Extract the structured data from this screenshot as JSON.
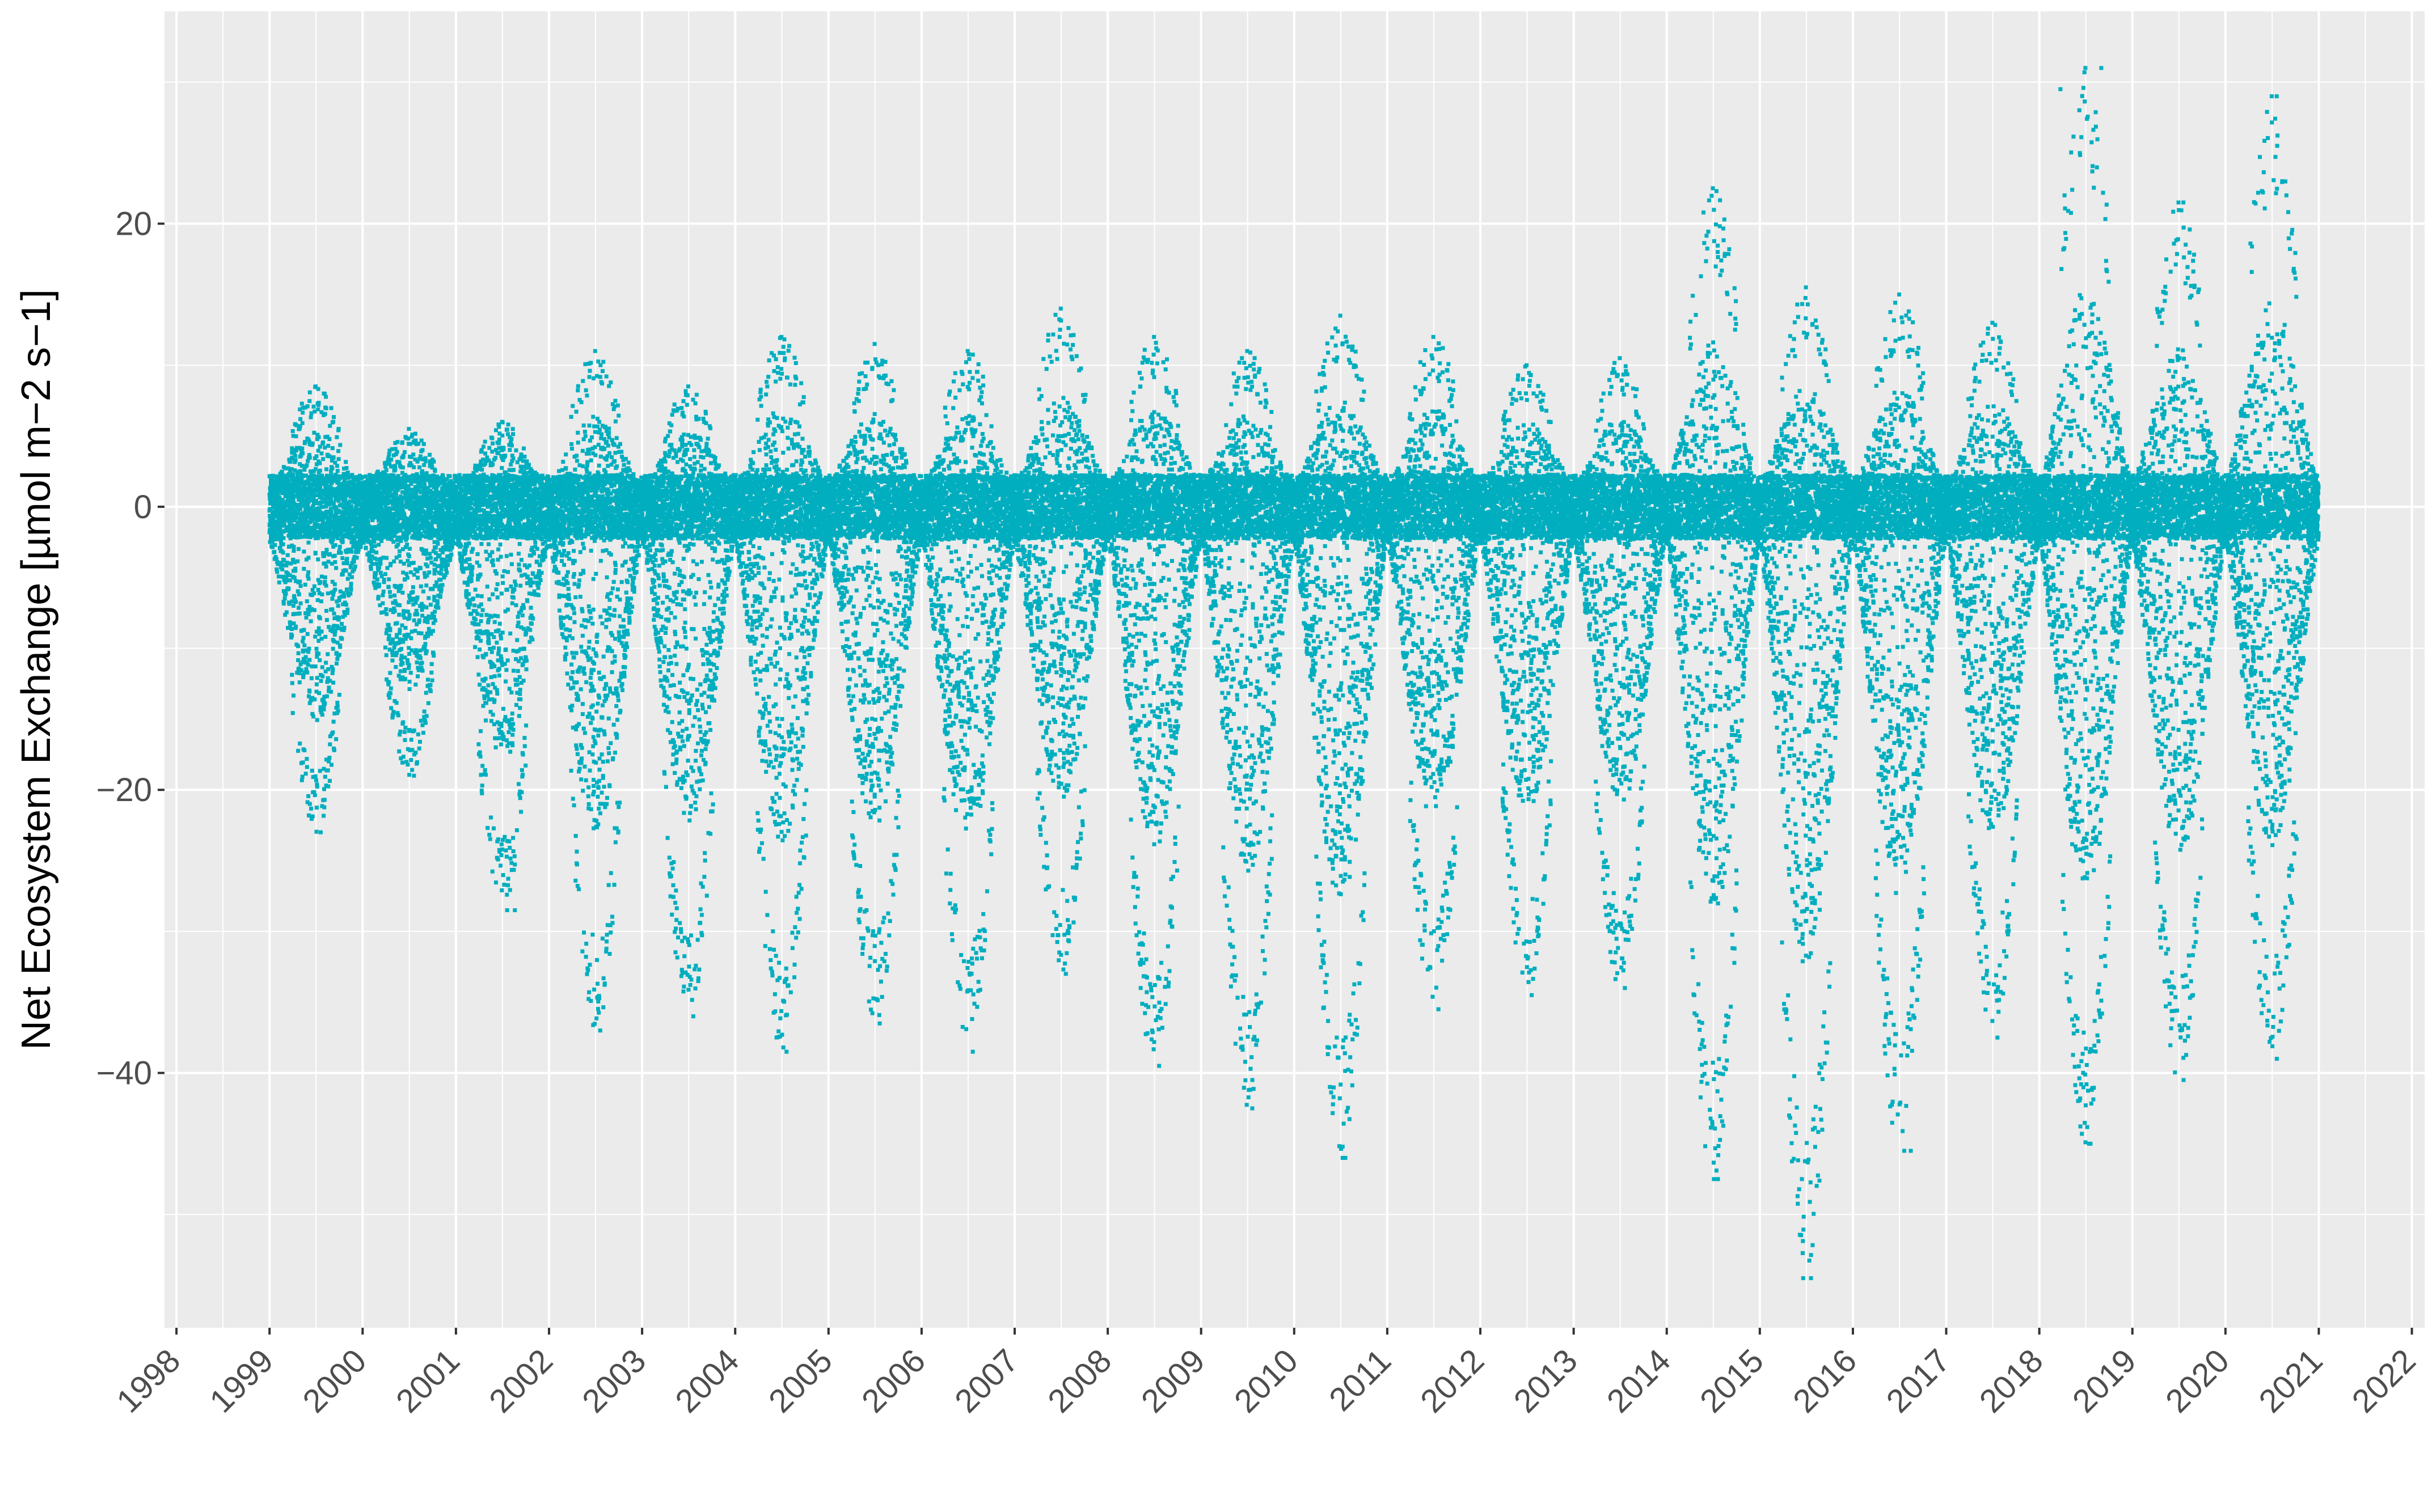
{
  "chart_data": {
    "type": "scatter",
    "title": "",
    "xlabel": "",
    "ylabel": "Net Ecosystem Exchange [µmol m−2 s−1]",
    "xlim": [
      "1997-11-15",
      "2022-02-20"
    ],
    "ylim": [
      -58,
      35
    ],
    "x_ticks": [
      "1998",
      "1999",
      "2000",
      "2001",
      "2002",
      "2003",
      "2004",
      "2005",
      "2006",
      "2007",
      "2008",
      "2009",
      "2010",
      "2011",
      "2012",
      "2013",
      "2014",
      "2015",
      "2016",
      "2017",
      "2018",
      "2019",
      "2020",
      "2021",
      "2022"
    ],
    "y_ticks": [
      -40,
      -20,
      0,
      20
    ],
    "grid": true,
    "legend": "none",
    "point_color": "#00AEBF",
    "panel_color": "#EBEBEB",
    "grid_color": "#FFFFFF",
    "series": [
      {
        "x_range": [
          "1999-01-01",
          "2020-12-31"
        ],
        "seasonal_extremes": [
          {
            "year": "1999",
            "max": 8.5,
            "min": -23
          },
          {
            "year": "2000",
            "max": 5.5,
            "min": -19
          },
          {
            "year": "2001",
            "max": 6,
            "min": -28.5
          },
          {
            "year": "2002",
            "max": 11,
            "min": -37
          },
          {
            "year": "2003",
            "max": 8.5,
            "min": -36
          },
          {
            "year": "2004",
            "max": 12,
            "min": -38.5
          },
          {
            "year": "2005",
            "max": 11.5,
            "min": -36.5
          },
          {
            "year": "2006",
            "max": 11,
            "min": -38.5
          },
          {
            "year": "2007",
            "max": 14,
            "min": -33
          },
          {
            "year": "2008",
            "max": 12,
            "min": -39.5
          },
          {
            "year": "2009",
            "max": 11,
            "min": -42.5
          },
          {
            "year": "2010",
            "max": 13.5,
            "min": -46
          },
          {
            "year": "2011",
            "max": 12,
            "min": -35.5
          },
          {
            "year": "2012",
            "max": 10,
            "min": -34.5
          },
          {
            "year": "2013",
            "max": 10.5,
            "min": -34
          },
          {
            "year": "2014",
            "max": 22.5,
            "min": -47.5
          },
          {
            "year": "2015",
            "max": 15.5,
            "min": -54.5
          },
          {
            "year": "2016",
            "max": 15,
            "min": -45.5
          },
          {
            "year": "2017",
            "max": 13,
            "min": -37.5
          },
          {
            "year": "2018",
            "max": 31,
            "min": -45
          },
          {
            "year": "2019",
            "max": 21.5,
            "min": -40.5
          },
          {
            "year": "2020",
            "max": 29,
            "min": -39
          }
        ],
        "outliers": [
          {
            "x": "2014-07-15",
            "y": 22.3
          },
          {
            "x": "2014-07-20",
            "y": 18
          },
          {
            "x": "2015-06-20",
            "y": -54.5
          },
          {
            "x": "2015-06-15",
            "y": -47.5
          },
          {
            "x": "2014-07-05",
            "y": -47.5
          },
          {
            "x": "2016-08-15",
            "y": -45.5
          },
          {
            "x": "2018-03-25",
            "y": 29.5
          },
          {
            "x": "2018-09-01",
            "y": 31
          },
          {
            "x": "2018-04-10",
            "y": 22
          },
          {
            "x": "2018-07-15",
            "y": -45
          },
          {
            "x": "2019-07-20",
            "y": 21.5
          },
          {
            "x": "2020-07-20",
            "y": 29
          },
          {
            "x": "2020-07-22",
            "y": 25.5
          },
          {
            "x": "2010-07-10",
            "y": -46
          },
          {
            "x": "2001-08-20",
            "y": -28.5
          }
        ]
      }
    ]
  }
}
